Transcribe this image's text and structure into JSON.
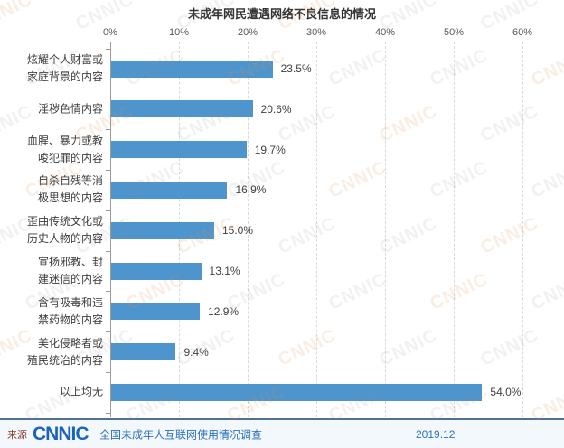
{
  "title": "未成年网民遭遇网络不良信息的情况",
  "chart_data": {
    "type": "bar",
    "orientation": "horizontal",
    "title": "未成年网民遭遇网络不良信息的情况",
    "categories": [
      "炫耀个人财富或家庭背景的内容",
      "淫秽色情内容",
      "血腥、暴力或教唆犯罪的内容",
      "自杀自残等消极思想的内容",
      "歪曲传统文化或历史人物的内容",
      "宣扬邪教、封建迷信的内容",
      "含有吸毒和违禁药物的内容",
      "美化侵略者或殖民统治的内容",
      "以上均无"
    ],
    "category_lines": [
      [
        "炫耀个人财富或",
        "家庭背景的内容"
      ],
      [
        "淫秽色情内容"
      ],
      [
        "血腥、暴力或教",
        "唆犯罪的内容"
      ],
      [
        "自杀自残等消",
        "极思想的内容"
      ],
      [
        "歪曲传统文化或",
        "历史人物的内容"
      ],
      [
        "宣扬邪教、封",
        "建迷信的内容"
      ],
      [
        "含有吸毒和违",
        "禁药物的内容"
      ],
      [
        "美化侵略者或",
        "殖民统治的内容"
      ],
      [
        "以上均无"
      ]
    ],
    "values": [
      23.5,
      20.6,
      19.7,
      16.9,
      15.0,
      13.1,
      12.9,
      9.4,
      54.0
    ],
    "value_labels": [
      "23.5%",
      "20.6%",
      "19.7%",
      "16.9%",
      "15.0%",
      "13.1%",
      "12.9%",
      "9.4%",
      "54.0%"
    ],
    "x_ticks": [
      "0%",
      "10%",
      "20%",
      "30%",
      "40%",
      "50%",
      "60%"
    ],
    "xlim": [
      0,
      60
    ],
    "grid": "vertical-dashed",
    "legend": "none",
    "bar_color": "#4E95CE"
  },
  "footer": {
    "source_label": "来源",
    "logo_text": "CNNIC",
    "survey_name": "全国未成年人互联网使用情况调查",
    "date": "2019.12"
  },
  "watermark": {
    "text": "CNNIC"
  },
  "colors": {
    "bar": "#4E95CE",
    "title_text": "#333333",
    "axis_text": "#595959",
    "label_text": "#404040",
    "gridline": "#D9D9D9",
    "axis_line": "#9B9B9B",
    "separator": "#4F7194",
    "footer_bg": "#F3F8FC",
    "source_text": "#8C3B2E",
    "footer_text": "#2D6FBA"
  }
}
